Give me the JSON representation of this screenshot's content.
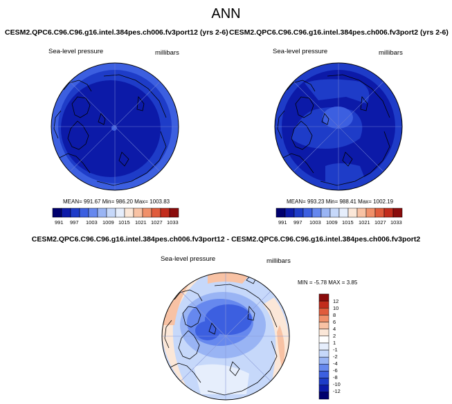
{
  "main_title": "ANN",
  "panels": [
    {
      "title": "CESM2.QPC6.C96.C96.g16.intel.384pes.ch006.fv3port12 (yrs 2-6)",
      "variable": "Sea-level pressure",
      "units": "millibars",
      "stats": "MEAN= 991.67   Min= 986.20   Max= 1003.83"
    },
    {
      "title": "CESM2.QPC6.C96.C96.g16.intel.384pes.ch006.fv3port2 (yrs 2-6)",
      "variable": "Sea-level pressure",
      "units": "millibars",
      "stats": "MEAN= 993.23   Min= 988.41   Max= 1002.19"
    }
  ],
  "top_colorbar": {
    "colors": [
      "#00006e",
      "#0c1aa8",
      "#1e3cc8",
      "#3c5fe0",
      "#6688ee",
      "#99b4f4",
      "#c6d8fa",
      "#e6eefc",
      "#fbe7d8",
      "#f8c2a4",
      "#f0906a",
      "#e05c3c",
      "#c22c1c",
      "#8a0c0c"
    ],
    "labels": [
      "991",
      "997",
      "1003",
      "1009",
      "1015",
      "1021",
      "1027",
      "1033"
    ]
  },
  "diff_panel": {
    "title": "CESM2.QPC6.C96.C96.g16.intel.384pes.ch006.fv3port12 - CESM2.QPC6.C96.C96.g16.intel.384pes.ch006.fv3port2",
    "variable": "Sea-level pressure",
    "units": "millibars",
    "stats": "MIN =  -5.78 MAX =   3.85"
  },
  "diff_colorbar": {
    "colors": [
      "#8a0c0c",
      "#c22c1c",
      "#e05c3c",
      "#f0906a",
      "#f8c2a4",
      "#fbe7d8",
      "#ffffff",
      "#e6eefc",
      "#c6d8fa",
      "#99b4f4",
      "#6688ee",
      "#3c5fe0",
      "#1e3cc8",
      "#0c1aa8",
      "#00006e"
    ],
    "labels": [
      "12",
      "10",
      "8",
      "6",
      "4",
      "2",
      "1",
      "-1",
      "-2",
      "-4",
      "-6",
      "-8",
      "-10",
      "-12"
    ]
  },
  "colors": {
    "deep_blue": "#0a14a0",
    "mid_blue": "#1e3cc8",
    "light_blue": "#3c5fe0",
    "diff_base": "#c6d8fa"
  }
}
